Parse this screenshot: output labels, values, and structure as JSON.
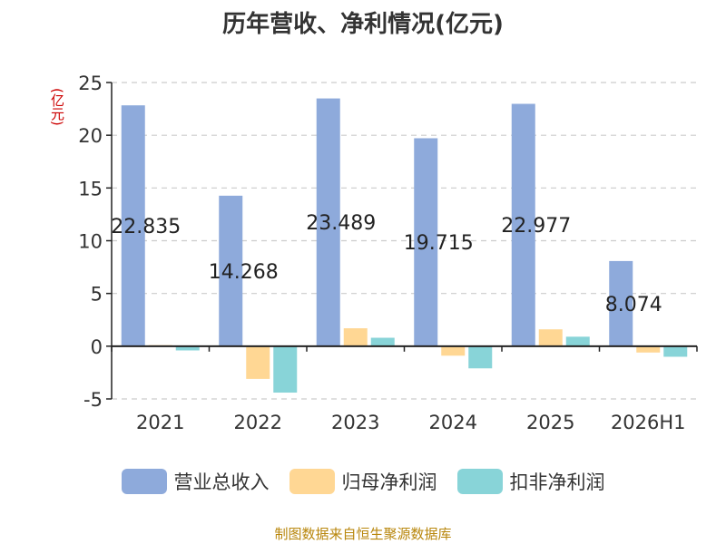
{
  "title": "历年营收、净利情况(亿元)",
  "unit_label": "(亿元)",
  "source": "制图数据来自恒生聚源数据库",
  "colors": {
    "revenue": "#8eaadb",
    "net_profit": "#ffd794",
    "deducted_net_profit": "#88d4d8",
    "axis": "#222222",
    "grid": "#cccccc",
    "unit": "#cc0000",
    "source": "#b8860b"
  },
  "chart_data": {
    "type": "bar",
    "categories": [
      "2021",
      "2022",
      "2023",
      "2024",
      "2025",
      "2026H1"
    ],
    "series": [
      {
        "name": "营业总收入",
        "values": [
          22.835,
          14.268,
          23.489,
          19.715,
          22.977,
          8.074
        ]
      },
      {
        "name": "归母净利润",
        "values": [
          0.1,
          -3.1,
          1.7,
          -0.9,
          1.6,
          -0.6
        ]
      },
      {
        "name": "扣非净利润",
        "values": [
          -0.4,
          -4.4,
          0.8,
          -2.1,
          0.9,
          -1.0
        ]
      }
    ],
    "data_labels": [
      "22.835",
      "14.268",
      "23.489",
      "19.715",
      "22.977",
      "8.074"
    ],
    "y_ticks": [
      "25",
      "20",
      "15",
      "10",
      "5",
      "0",
      "-5"
    ],
    "ylim": [
      -5,
      25
    ],
    "grid": true,
    "legend_position": "bottom"
  }
}
